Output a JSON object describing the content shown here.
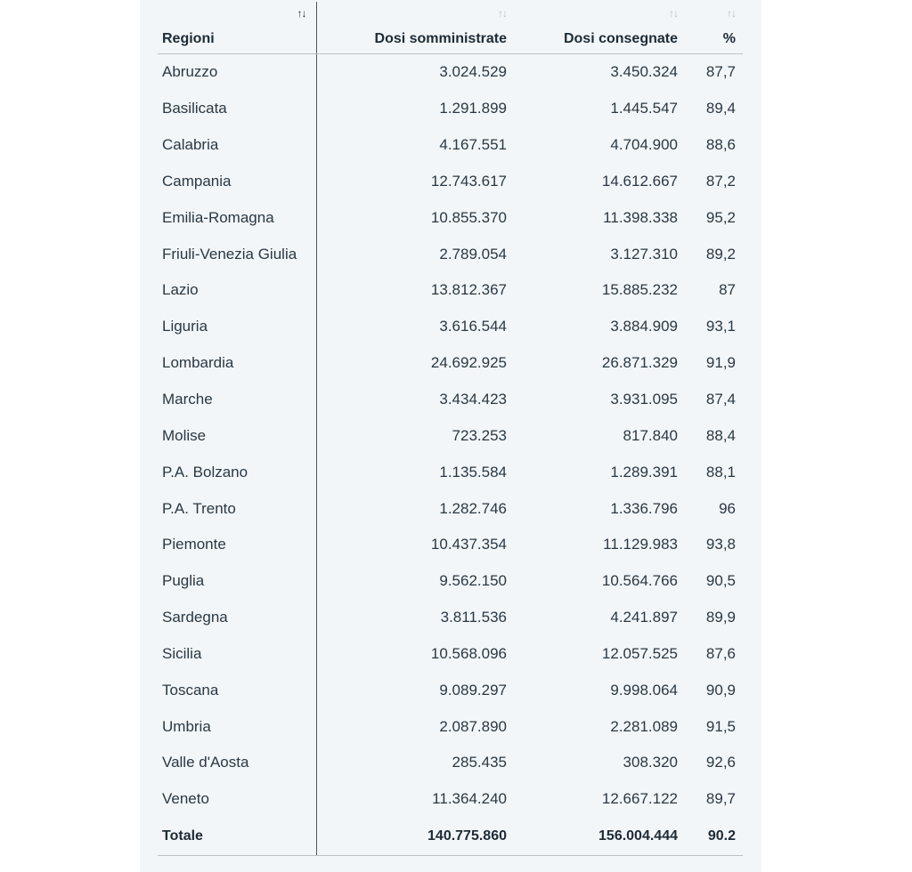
{
  "table": {
    "columns": [
      {
        "label": "Regioni",
        "sort_icon": "sort-up-down-icon",
        "active": true
      },
      {
        "label": "Dosi somministrate",
        "sort_icon": "sort-up-down-icon",
        "active": false
      },
      {
        "label": "Dosi consegnate",
        "sort_icon": "sort-up-down-icon",
        "active": false
      },
      {
        "label": "%",
        "sort_icon": "sort-up-down-icon",
        "active": false
      }
    ],
    "sort_glyph_up": "↑",
    "sort_glyph_down": "↓",
    "rows": [
      {
        "region": "Abruzzo",
        "somministrate": "3.024.529",
        "consegnate": "3.450.324",
        "percent": "87,7"
      },
      {
        "region": "Basilicata",
        "somministrate": "1.291.899",
        "consegnate": "1.445.547",
        "percent": "89,4"
      },
      {
        "region": "Calabria",
        "somministrate": "4.167.551",
        "consegnate": "4.704.900",
        "percent": "88,6"
      },
      {
        "region": "Campania",
        "somministrate": "12.743.617",
        "consegnate": "14.612.667",
        "percent": "87,2"
      },
      {
        "region": "Emilia-Romagna",
        "somministrate": "10.855.370",
        "consegnate": "11.398.338",
        "percent": "95,2"
      },
      {
        "region": "Friuli-Venezia Giulia",
        "somministrate": "2.789.054",
        "consegnate": "3.127.310",
        "percent": "89,2"
      },
      {
        "region": "Lazio",
        "somministrate": "13.812.367",
        "consegnate": "15.885.232",
        "percent": "87"
      },
      {
        "region": "Liguria",
        "somministrate": "3.616.544",
        "consegnate": "3.884.909",
        "percent": "93,1"
      },
      {
        "region": "Lombardia",
        "somministrate": "24.692.925",
        "consegnate": "26.871.329",
        "percent": "91,9"
      },
      {
        "region": "Marche",
        "somministrate": "3.434.423",
        "consegnate": "3.931.095",
        "percent": "87,4"
      },
      {
        "region": "Molise",
        "somministrate": "723.253",
        "consegnate": "817.840",
        "percent": "88,4"
      },
      {
        "region": "P.A. Bolzano",
        "somministrate": "1.135.584",
        "consegnate": "1.289.391",
        "percent": "88,1"
      },
      {
        "region": "P.A. Trento",
        "somministrate": "1.282.746",
        "consegnate": "1.336.796",
        "percent": "96"
      },
      {
        "region": "Piemonte",
        "somministrate": "10.437.354",
        "consegnate": "11.129.983",
        "percent": "93,8"
      },
      {
        "region": "Puglia",
        "somministrate": "9.562.150",
        "consegnate": "10.564.766",
        "percent": "90,5"
      },
      {
        "region": "Sardegna",
        "somministrate": "3.811.536",
        "consegnate": "4.241.897",
        "percent": "89,9"
      },
      {
        "region": "Sicilia",
        "somministrate": "10.568.096",
        "consegnate": "12.057.525",
        "percent": "87,6"
      },
      {
        "region": "Toscana",
        "somministrate": "9.089.297",
        "consegnate": "9.998.064",
        "percent": "90,9"
      },
      {
        "region": "Umbria",
        "somministrate": "2.087.890",
        "consegnate": "2.281.089",
        "percent": "91,5"
      },
      {
        "region": "Valle d'Aosta",
        "somministrate": "285.435",
        "consegnate": "308.320",
        "percent": "92,6"
      },
      {
        "region": "Veneto",
        "somministrate": "11.364.240",
        "consegnate": "12.667.122",
        "percent": "89,7"
      }
    ],
    "total": {
      "region": "Totale",
      "somministrate": "140.775.860",
      "consegnate": "156.004.444",
      "percent": "90.2"
    }
  },
  "colors": {
    "panel_bg": "#f3f6f9",
    "text": "#1d2b36",
    "inactive_sort": "#b7bec5"
  }
}
